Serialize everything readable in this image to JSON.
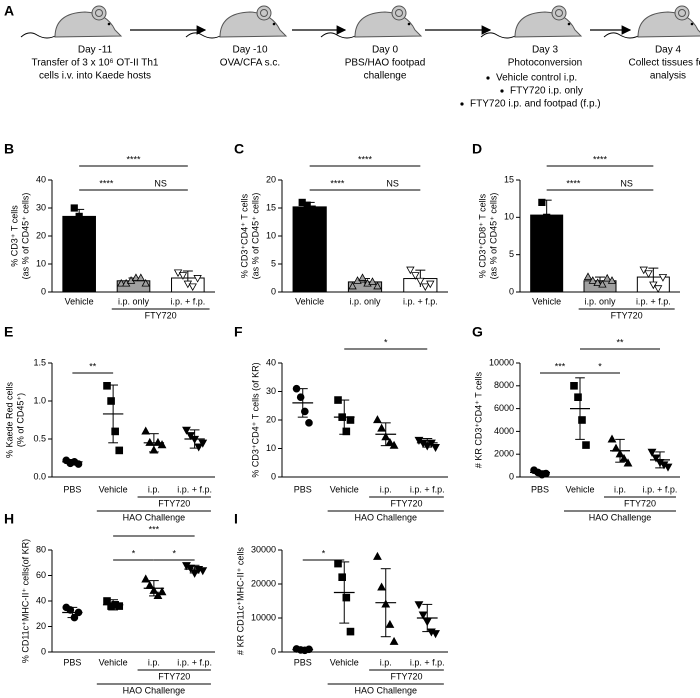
{
  "workflow": {
    "label": "A",
    "steps": [
      {
        "day": "Day -11",
        "text": [
          "Transfer of 3 x 10⁶ OT-II Th1",
          "cells i.v. into Kaede hosts"
        ]
      },
      {
        "day": "Day -10",
        "text": [
          "OVA/CFA s.c."
        ]
      },
      {
        "day": "Day 0",
        "text": [
          "PBS/HAO footpad",
          "challenge"
        ]
      },
      {
        "day": "Day 3",
        "text": [
          "Photoconversion"
        ],
        "bullets": [
          "Vehicle control i.p.",
          "FTY720 i.p. only",
          "FTY720 i.p. and footpad (f.p.)"
        ]
      },
      {
        "day": "Day 4",
        "text": [
          "Collect tissues for",
          "analysis"
        ]
      }
    ]
  },
  "chart_data": [
    {
      "label": "B",
      "type": "bar",
      "ylabel": [
        "% CD3⁺ T cells",
        "(as % of CD45⁺ cells)"
      ],
      "categories": [
        "Vehicle",
        "i.p. only",
        "i.p. + f.p."
      ],
      "values": [
        27,
        4,
        5
      ],
      "errors": [
        2.5,
        1,
        2.5
      ],
      "points": [
        [
          30,
          27,
          25
        ],
        [
          3,
          3,
          4,
          5,
          5,
          3
        ],
        [
          7,
          6,
          3,
          2,
          5
        ]
      ],
      "markers": [
        "square",
        "triangle",
        "triangle-down"
      ],
      "colors": [
        "#000000",
        "#a0a0a0",
        "#ffffff"
      ],
      "ylim": [
        0,
        40
      ],
      "yticks": [
        0,
        10,
        20,
        30,
        40
      ],
      "groups": [
        {
          "label": "FTY720",
          "span": [
            1,
            2
          ]
        }
      ],
      "significance": [
        {
          "between": [
            0,
            1
          ],
          "label": "****"
        },
        {
          "between": [
            1,
            2
          ],
          "label": "NS"
        },
        {
          "between": [
            0,
            2
          ],
          "label": "****"
        }
      ]
    },
    {
      "label": "C",
      "type": "bar",
      "ylabel": [
        "% CD3⁺CD4⁺ T cells",
        "(as % of CD45⁺ cells)"
      ],
      "categories": [
        "Vehicle",
        "i.p. only",
        "i.p. + f.p."
      ],
      "values": [
        15.2,
        1.8,
        2.4
      ],
      "errors": [
        0.8,
        0.6,
        1.5
      ],
      "points": [
        [
          16,
          15.5,
          14.8,
          14.5
        ],
        [
          1,
          2,
          2.5,
          1.5,
          1.8,
          1
        ],
        [
          4,
          3,
          2,
          1,
          1.5
        ]
      ],
      "markers": [
        "square",
        "triangle",
        "triangle-down"
      ],
      "colors": [
        "#000000",
        "#a0a0a0",
        "#ffffff"
      ],
      "ylim": [
        0,
        20
      ],
      "yticks": [
        0,
        5,
        10,
        15,
        20
      ],
      "significance": [
        {
          "between": [
            0,
            1
          ],
          "label": "****"
        },
        {
          "between": [
            1,
            2
          ],
          "label": "NS"
        },
        {
          "between": [
            0,
            2
          ],
          "label": "****"
        }
      ]
    },
    {
      "label": "D",
      "type": "bar",
      "ylabel": [
        "% CD3⁺CD8⁺ T cells",
        "(as % of CD45⁺ cells)"
      ],
      "categories": [
        "Vehicle",
        "i.p. only",
        "i.p. + f.p."
      ],
      "values": [
        10.3,
        1.5,
        2
      ],
      "errors": [
        2,
        0.5,
        1.2
      ],
      "points": [
        [
          12,
          10,
          8.5
        ],
        [
          2,
          1.5,
          1.2,
          1,
          1.8,
          1.5
        ],
        [
          3,
          2.5,
          1,
          0.5,
          2
        ]
      ],
      "markers": [
        "square",
        "triangle",
        "triangle-down"
      ],
      "colors": [
        "#000000",
        "#a0a0a0",
        "#ffffff"
      ],
      "ylim": [
        0,
        15
      ],
      "yticks": [
        0,
        5,
        10,
        15
      ],
      "groups": [
        {
          "label": "FTY720",
          "span": [
            1,
            2
          ]
        }
      ],
      "significance": [
        {
          "between": [
            0,
            1
          ],
          "label": "****"
        },
        {
          "between": [
            1,
            2
          ],
          "label": "NS"
        },
        {
          "between": [
            0,
            2
          ],
          "label": "****"
        }
      ]
    },
    {
      "label": "E",
      "type": "scatter",
      "ylabel": [
        "% Kaede Red cells",
        "(% of CD45⁺)"
      ],
      "categories": [
        "PBS",
        "Vehicle",
        "i.p.",
        "i.p. + f.p."
      ],
      "values": [
        0.2,
        0.83,
        0.45,
        0.5
      ],
      "errors": [
        0.03,
        0.38,
        0.12,
        0.12
      ],
      "points": [
        [
          0.22,
          0.18,
          0.2,
          0.17
        ],
        [
          1.2,
          1.0,
          0.6,
          0.35
        ],
        [
          0.6,
          0.45,
          0.35,
          0.45,
          0.42
        ],
        [
          0.62,
          0.55,
          0.5,
          0.4,
          0.45
        ]
      ],
      "markers": [
        "circle",
        "square",
        "triangle",
        "triangle-down"
      ],
      "ylim": [
        0,
        1.5
      ],
      "yticks": [
        {
          "value": 0,
          "label": "0.0"
        },
        0.5,
        {
          "value": 1,
          "label": "1.0"
        },
        1.5
      ],
      "groups": [
        {
          "label": "FTY720",
          "span": [
            2,
            3
          ]
        },
        {
          "label": "HAO Challenge",
          "span": [
            1,
            3
          ]
        }
      ],
      "significance": [
        {
          "between": [
            0,
            1
          ],
          "label": "**"
        }
      ]
    },
    {
      "label": "F",
      "type": "scatter",
      "ylabel": [
        "% CD3⁺CD4⁺ T cells (of KR)"
      ],
      "categories": [
        "PBS",
        "Vehicle",
        "i.p.",
        "i.p. + f.p."
      ],
      "values": [
        26,
        21,
        15,
        12
      ],
      "errors": [
        5,
        6,
        4,
        1.5
      ],
      "points": [
        [
          31,
          28,
          23,
          19
        ],
        [
          27,
          21,
          16,
          20
        ],
        [
          20,
          17,
          14,
          12,
          11
        ],
        [
          13,
          12,
          11,
          12,
          10.5
        ]
      ],
      "markers": [
        "circle",
        "square",
        "triangle",
        "triangle-down"
      ],
      "ylim": [
        0,
        40
      ],
      "yticks": [
        0,
        10,
        20,
        30,
        40
      ],
      "groups": [
        {
          "label": "FTY720",
          "span": [
            2,
            3
          ]
        },
        {
          "label": "HAO Challenge",
          "span": [
            1,
            3
          ]
        }
      ],
      "significance": [
        {
          "between": [
            1,
            3
          ],
          "label": "*"
        }
      ]
    },
    {
      "label": "G",
      "type": "scatter",
      "ylabel": [
        "# KR CD3⁺CD4⁺ T cells"
      ],
      "categories": [
        "PBS",
        "Vehicle",
        "i.p.",
        "i.p. + f.p."
      ],
      "values": [
        400,
        6000,
        2300,
        1500
      ],
      "errors": [
        150,
        2700,
        1000,
        700
      ],
      "points": [
        [
          600,
          400,
          200,
          300
        ],
        [
          8000,
          7000,
          5000,
          2800
        ],
        [
          3300,
          2500,
          2000,
          1600,
          1200
        ],
        [
          2200,
          1700,
          1300,
          1100,
          900
        ]
      ],
      "markers": [
        "circle",
        "square",
        "triangle",
        "triangle-down"
      ],
      "ylim": [
        0,
        10000
      ],
      "yticks": [
        0,
        2000,
        4000,
        6000,
        8000,
        10000
      ],
      "groups": [
        {
          "label": "FTY720",
          "span": [
            2,
            3
          ]
        },
        {
          "label": "HAO Challenge",
          "span": [
            1,
            3
          ]
        }
      ],
      "significance": [
        {
          "between": [
            0,
            1
          ],
          "label": "***"
        },
        {
          "between": [
            1,
            2
          ],
          "label": "*"
        },
        {
          "between": [
            1,
            3
          ],
          "label": "**"
        }
      ]
    },
    {
      "label": "H",
      "type": "scatter",
      "ylabel": [
        "% CD11c⁺MHC-II⁺ cells(of KR)"
      ],
      "categories": [
        "PBS",
        "Vehicle",
        "i.p.",
        "i.p. + f.p."
      ],
      "values": [
        31,
        37,
        50,
        65
      ],
      "errors": [
        4,
        4,
        6,
        3
      ],
      "points": [
        [
          35,
          33,
          27,
          31
        ],
        [
          40,
          36,
          37,
          36
        ],
        [
          57,
          52,
          48,
          44,
          47
        ],
        [
          68,
          66,
          62,
          65,
          64
        ]
      ],
      "markers": [
        "circle",
        "square",
        "triangle",
        "triangle-down"
      ],
      "ylim": [
        0,
        80
      ],
      "yticks": [
        0,
        20,
        40,
        60,
        80
      ],
      "groups": [
        {
          "label": "FTY720",
          "span": [
            2,
            3
          ]
        },
        {
          "label": "HAO Challenge",
          "span": [
            1,
            3
          ]
        }
      ],
      "significance": [
        {
          "between": [
            1,
            2
          ],
          "label": "*"
        },
        {
          "between": [
            2,
            3
          ],
          "label": "*"
        },
        {
          "between": [
            1,
            3
          ],
          "label": "***"
        }
      ]
    },
    {
      "label": "I",
      "type": "scatter",
      "ylabel": [
        "# KR CD11c⁺MHC-II⁺ cells"
      ],
      "categories": [
        "PBS",
        "Vehicle",
        "i.p.",
        "i.p. + f.p."
      ],
      "values": [
        700,
        17500,
        14500,
        10000
      ],
      "errors": [
        200,
        9000,
        10000,
        4000
      ],
      "points": [
        [
          900,
          600,
          500,
          800
        ],
        [
          26000,
          22000,
          16000,
          6000
        ],
        [
          28000,
          19000,
          14000,
          8000,
          3000
        ],
        [
          14000,
          11000,
          9000,
          6000,
          5500
        ]
      ],
      "markers": [
        "circle",
        "square",
        "triangle",
        "triangle-down"
      ],
      "ylim": [
        0,
        30000
      ],
      "yticks": [
        0,
        10000,
        20000,
        30000
      ],
      "groups": [
        {
          "label": "FTY720",
          "span": [
            2,
            3
          ]
        },
        {
          "label": "HAO Challenge",
          "span": [
            1,
            3
          ]
        }
      ],
      "significance": [
        {
          "between": [
            0,
            1
          ],
          "label": "*"
        }
      ]
    }
  ]
}
